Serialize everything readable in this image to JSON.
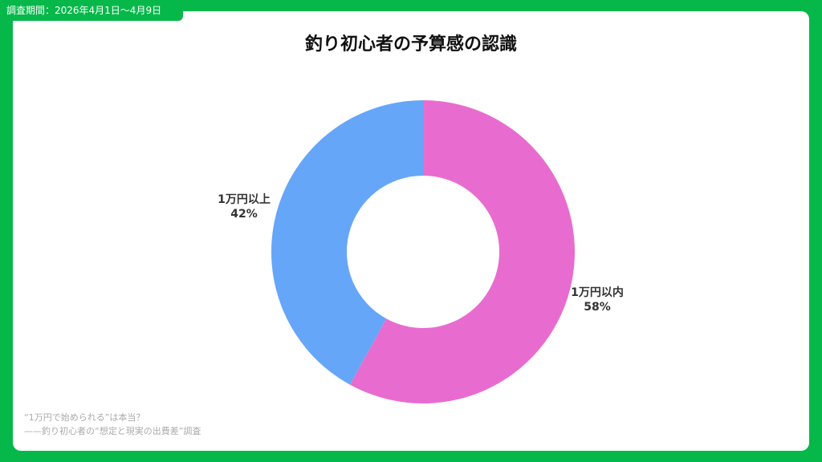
{
  "header": {
    "survey_period": "調査期間：2026年4月1日～4月9日"
  },
  "footer": {
    "line1": "“1万円で始められる”は本当？",
    "line2": "——釣り初心者の“想定と現実の出費差”調査"
  },
  "colors": {
    "frame": "#06b84a",
    "under_10k": "#e86ccf",
    "over_10k": "#66a6f8"
  },
  "chart_data": {
    "type": "pie",
    "subtype": "donut",
    "title": "釣り初心者の予算感の認識",
    "categories": [
      "1万円以内",
      "1万円以上"
    ],
    "values": [
      58,
      42
    ],
    "value_labels": [
      "58%",
      "42%"
    ],
    "colors": [
      "#e86ccf",
      "#66a6f8"
    ],
    "start": "12 o'clock",
    "direction": "clockwise",
    "legend": "none"
  }
}
